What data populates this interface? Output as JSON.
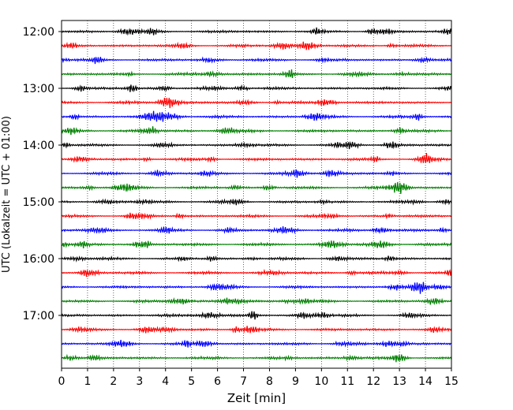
{
  "chart_data": {
    "type": "line",
    "title": "",
    "xlabel": "Zeit  [min]",
    "ylabel": "UTC (Lokalzeit = UTC + 01:00)",
    "xlim": [
      0,
      15
    ],
    "x_ticks": [
      "0",
      "1",
      "2",
      "3",
      "4",
      "5",
      "6",
      "7",
      "8",
      "9",
      "10",
      "11",
      "12",
      "13",
      "14",
      "15"
    ],
    "y_tick_labels": [
      "12:00",
      "13:00",
      "14:00",
      "15:00",
      "16:00",
      "17:00"
    ],
    "grid": "vertical dotted at each minute",
    "legend": "none",
    "trace_interval_minutes": 15,
    "trace_start": "12:00",
    "trace_count": 24,
    "trace_colors": [
      "#000000",
      "#ff0000",
      "#0000ff",
      "#008000"
    ],
    "series_description_units": "seismic helicorder: one 15-minute trace per row, colors cycling black, red, blue, green"
  }
}
